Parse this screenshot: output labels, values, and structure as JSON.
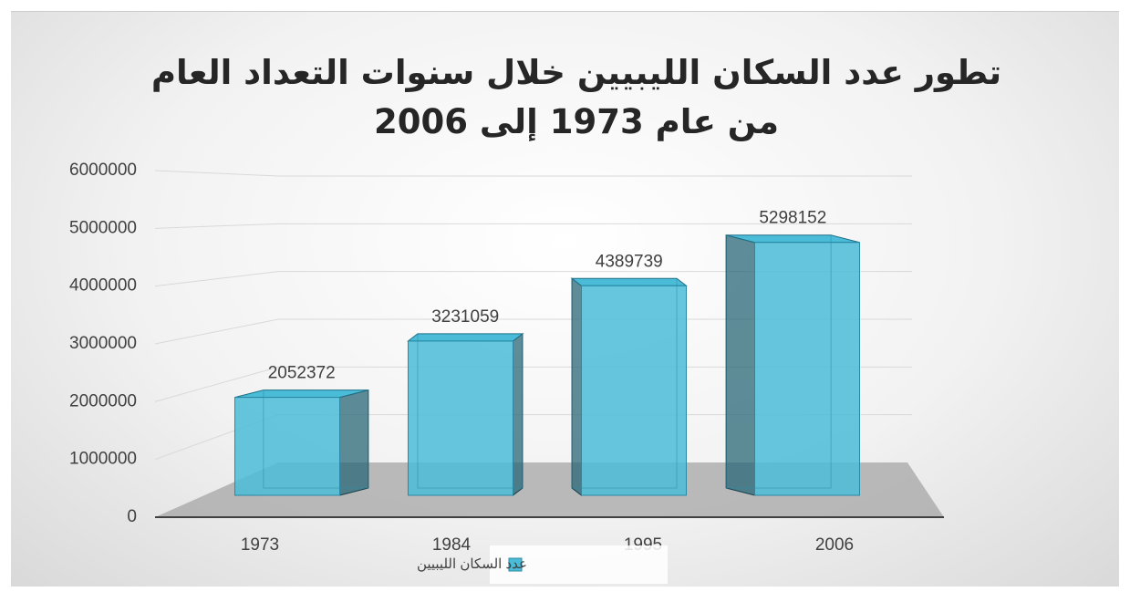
{
  "chart_data": {
    "type": "bar",
    "title": "تطور عدد السكان الليبيين خلال سنوات التعداد العام من عام 1973 إلى 2006",
    "categories": [
      "1973",
      "1984",
      "1995",
      "2006"
    ],
    "series": [
      {
        "name": "عدد السكان الليبيين",
        "color": "#4bbcd8",
        "values": [
          2052372,
          3231059,
          4389739,
          5298152
        ]
      }
    ],
    "ylim": [
      0,
      6000000
    ],
    "yticks": [
      0,
      1000000,
      2000000,
      3000000,
      4000000,
      5000000,
      6000000
    ],
    "grid": true
  }
}
